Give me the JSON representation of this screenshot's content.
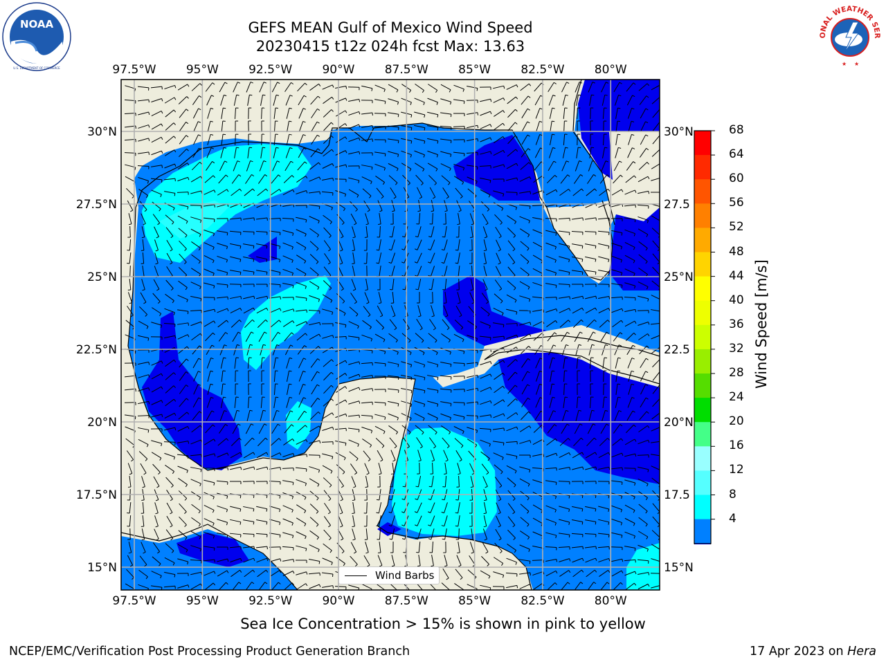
{
  "header": {
    "title_line1": "GEFS MEAN Gulf of Mexico Wind Speed",
    "title_line2": "20230415 t12z 024h fcst   Max: 13.63"
  },
  "logos": {
    "left": {
      "name": "noaa-logo",
      "text": "NOAA",
      "ring_text": "NATIONAL OCEANIC AND ATMOSPHERIC ADMINISTRATION · U.S. DEPARTMENT OF COMMERCE"
    },
    "right": {
      "name": "nws-logo",
      "ring_text": "NATIONAL WEATHER SERVICE"
    }
  },
  "map": {
    "lon_labels": [
      "97.5°W",
      "95°W",
      "92.5°W",
      "90°W",
      "87.5°W",
      "85°W",
      "82.5°W",
      "80°W"
    ],
    "lat_labels": [
      "30°N",
      "27.5°N",
      "25°N",
      "22.5°N",
      "20°N",
      "17.5°N",
      "15°N"
    ],
    "lat_labels_right": [
      "30°N",
      "27.5",
      "25°N",
      "22.5",
      "20°N",
      "17.5",
      "15°N"
    ],
    "lon_range": [
      -98,
      -78.2
    ],
    "lat_range": [
      14,
      31.7
    ],
    "land_color": "#eeeddd",
    "grid": true,
    "legend_label": "Wind Barbs"
  },
  "colorbar": {
    "levels": [
      "68",
      "64",
      "60",
      "56",
      "52",
      "48",
      "44",
      "40",
      "36",
      "32",
      "28",
      "24",
      "20",
      "16",
      "12",
      "8",
      "4"
    ],
    "colors": [
      "#ff0000",
      "#ff2a00",
      "#ff5500",
      "#ff8000",
      "#ffaa00",
      "#ffd400",
      "#ffff00",
      "#eeff00",
      "#ccff00",
      "#99ee00",
      "#55dd00",
      "#00dd00",
      "#44ff88",
      "#99ffff",
      "#55ffff",
      "#00ffff",
      "#0080ff"
    ],
    "extend_color": "#0000ee",
    "label": "Wind Speed [m/s]"
  },
  "caption": "Sea Ice Concentration > 15% is shown in pink to yellow",
  "footer": {
    "left": "NCEP/EMC/Verification Post Processing Product Generation Branch",
    "right_prefix": "17 Apr 2023 on ",
    "right_machine": "Hera"
  }
}
